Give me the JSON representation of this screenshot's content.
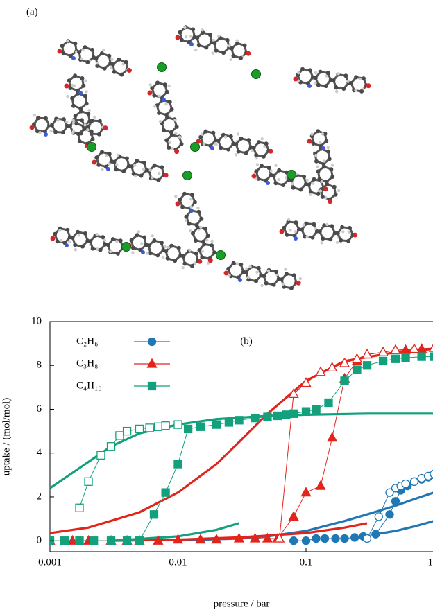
{
  "figure": {
    "label_a": "(a)"
  },
  "chart_data": {
    "type": "line",
    "annotation": "(b)",
    "x_label": "pressure / bar",
    "y_label": "uptake / (mol/mol)",
    "log_x": true,
    "xlim": [
      0.001,
      1
    ],
    "xticks": [
      0.001,
      0.01,
      0.1,
      1
    ],
    "ylim": [
      -0.5,
      10
    ],
    "yticks": [
      0,
      2,
      4,
      6,
      8,
      10
    ],
    "legend": "upper left",
    "series": [
      {
        "name": "C₂H₆",
        "color": "#1f77b4",
        "marker": "circle",
        "x": [
          0.08,
          0.1,
          0.12,
          0.14,
          0.17,
          0.2,
          0.24,
          0.28,
          0.35,
          0.45,
          0.5,
          0.55,
          0.62,
          0.7,
          0.8,
          0.9,
          1.0
        ],
        "values": [
          0,
          0,
          0.1,
          0.1,
          0.1,
          0.1,
          0.15,
          0.2,
          0.3,
          1.2,
          1.8,
          2.3,
          2.5,
          2.7,
          2.8,
          2.9,
          3.0
        ],
        "desorption_x": [
          0.3,
          0.37,
          0.45,
          0.5,
          0.55,
          0.6,
          0.7,
          0.8,
          0.9,
          1.0
        ],
        "desorption_values": [
          0.1,
          1.1,
          2.2,
          2.4,
          2.5,
          2.6,
          2.7,
          2.85,
          2.95,
          3.05
        ]
      },
      {
        "name": "C₃H₈",
        "color": "#e3241b",
        "marker": "triangle",
        "x": [
          0.001,
          0.0015,
          0.002,
          0.003,
          0.004,
          0.005,
          0.007,
          0.01,
          0.015,
          0.02,
          0.03,
          0.04,
          0.05,
          0.06,
          0.08,
          0.1,
          0.13,
          0.16,
          0.2,
          0.25,
          0.3,
          0.4,
          0.5,
          0.6,
          0.8,
          1.0
        ],
        "values": [
          0,
          0,
          0,
          0,
          0,
          0,
          0,
          0.05,
          0.05,
          0.05,
          0.1,
          0.1,
          0.1,
          0.1,
          1.1,
          2.2,
          2.5,
          4.7,
          7.4,
          8.2,
          8.5,
          8.6,
          8.7,
          8.7,
          8.75,
          8.8
        ],
        "desorption_x": [
          0.062,
          0.08,
          0.1,
          0.13,
          0.16,
          0.2,
          0.25,
          0.3,
          0.4,
          0.5,
          0.7,
          1.0
        ],
        "desorption_values": [
          0.1,
          6.7,
          7.2,
          7.7,
          7.9,
          8.1,
          8.3,
          8.5,
          8.6,
          8.7,
          8.75,
          8.8
        ]
      },
      {
        "name": "C₄H₁₀",
        "color": "#12a17c",
        "marker": "square",
        "x": [
          0.001,
          0.0013,
          0.0017,
          0.0022,
          0.003,
          0.004,
          0.005,
          0.0065,
          0.008,
          0.01,
          0.012,
          0.015,
          0.02,
          0.025,
          0.03,
          0.04,
          0.05,
          0.06,
          0.07,
          0.08,
          0.1,
          0.12,
          0.15,
          0.2,
          0.25,
          0.3,
          0.4,
          0.5,
          0.6,
          0.8,
          1.0
        ],
        "values": [
          0,
          0,
          0,
          0,
          0,
          0,
          0,
          1.2,
          2.2,
          3.5,
          5.1,
          5.2,
          5.3,
          5.4,
          5.5,
          5.6,
          5.65,
          5.7,
          5.75,
          5.8,
          5.9,
          6.0,
          6.3,
          7.3,
          7.8,
          8.0,
          8.2,
          8.3,
          8.35,
          8.4,
          8.4
        ],
        "desorption_x": [
          0.0017,
          0.002,
          0.0025,
          0.003,
          0.0035,
          0.004,
          0.005,
          0.006,
          0.007,
          0.008,
          0.01
        ],
        "desorption_values": [
          1.5,
          2.7,
          3.9,
          4.3,
          4.8,
          5.0,
          5.1,
          5.15,
          5.2,
          5.25,
          5.3
        ]
      }
    ],
    "fits": [
      {
        "color": "#1f77b4",
        "x": [
          0.01,
          0.03,
          0.05,
          0.1,
          0.2,
          0.3,
          0.5,
          0.7,
          1
        ],
        "values": [
          0.02,
          0.1,
          0.2,
          0.45,
          0.9,
          1.2,
          1.6,
          1.9,
          2.2
        ]
      },
      {
        "color": "#1f77b4",
        "x": [
          0.35,
          0.5,
          0.7,
          1
        ],
        "values": [
          0.3,
          0.45,
          0.65,
          0.9
        ]
      },
      {
        "color": "#e3241b",
        "x": [
          0.001,
          0.002,
          0.005,
          0.01,
          0.02,
          0.03,
          0.05,
          0.1,
          0.2,
          0.5,
          1
        ],
        "values": [
          0.35,
          0.6,
          1.3,
          2.2,
          3.5,
          4.5,
          5.8,
          7.3,
          8.2,
          8.6,
          8.75
        ]
      },
      {
        "color": "#e3241b",
        "x": [
          0.003,
          0.01,
          0.03,
          0.1,
          0.2,
          0.3
        ],
        "values": [
          0,
          0.05,
          0.15,
          0.35,
          0.6,
          0.8
        ]
      },
      {
        "color": "#12a17c",
        "x": [
          0.001,
          0.002,
          0.003,
          0.005,
          0.01,
          0.02,
          0.05,
          0.1,
          0.3,
          1
        ],
        "values": [
          2.4,
          3.6,
          4.3,
          4.9,
          5.3,
          5.55,
          5.7,
          5.75,
          5.8,
          5.8
        ]
      },
      {
        "color": "#12a17c",
        "x": [
          0.003,
          0.01,
          0.02,
          0.03
        ],
        "values": [
          0,
          0.2,
          0.5,
          0.8
        ]
      }
    ]
  }
}
